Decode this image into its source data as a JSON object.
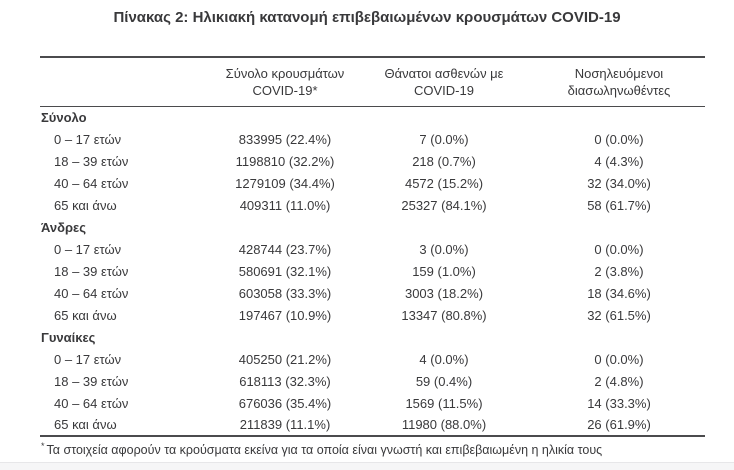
{
  "title": "Πίνακας 2: Ηλικιακή κατανομή επιβεβαιωμένων κρουσμάτων COVID-19",
  "colors": {
    "text": "#39393b",
    "rule": "#4b4b4d"
  },
  "table": {
    "columns": [
      {
        "line1": "",
        "line2": ""
      },
      {
        "line1": "Σύνολο κρουσμάτων",
        "line2": "COVID-19*"
      },
      {
        "line1": "Θάνατοι ασθενών με",
        "line2": "COVID-19"
      },
      {
        "line1": "Νοσηλευόμενοι",
        "line2": "διασωληνωθέντες"
      }
    ],
    "sections": [
      {
        "label": "Σύνολο",
        "rows": [
          {
            "age": "0 – 17 ετών",
            "cases": "833995 (22.4%)",
            "deaths": "7 (0.0%)",
            "intubated": "0 (0.0%)"
          },
          {
            "age": "18 – 39 ετών",
            "cases": "1198810 (32.2%)",
            "deaths": "218 (0.7%)",
            "intubated": "4 (4.3%)"
          },
          {
            "age": "40 – 64 ετών",
            "cases": "1279109 (34.4%)",
            "deaths": "4572 (15.2%)",
            "intubated": "32 (34.0%)"
          },
          {
            "age": "65 και άνω",
            "cases": "409311 (11.0%)",
            "deaths": "25327 (84.1%)",
            "intubated": "58 (61.7%)"
          }
        ]
      },
      {
        "label": "Άνδρες",
        "rows": [
          {
            "age": "0 – 17 ετών",
            "cases": "428744 (23.7%)",
            "deaths": "3 (0.0%)",
            "intubated": "0 (0.0%)"
          },
          {
            "age": "18 – 39 ετών",
            "cases": "580691 (32.1%)",
            "deaths": "159 (1.0%)",
            "intubated": "2 (3.8%)"
          },
          {
            "age": "40 – 64 ετών",
            "cases": "603058 (33.3%)",
            "deaths": "3003 (18.2%)",
            "intubated": "18 (34.6%)"
          },
          {
            "age": "65 και άνω",
            "cases": "197467 (10.9%)",
            "deaths": "13347 (80.8%)",
            "intubated": "32 (61.5%)"
          }
        ]
      },
      {
        "label": "Γυναίκες",
        "rows": [
          {
            "age": "0 – 17 ετών",
            "cases": "405250 (21.2%)",
            "deaths": "4 (0.0%)",
            "intubated": "0 (0.0%)"
          },
          {
            "age": "18 – 39 ετών",
            "cases": "618113 (32.3%)",
            "deaths": "59 (0.4%)",
            "intubated": "2 (4.8%)"
          },
          {
            "age": "40 – 64 ετών",
            "cases": "676036 (35.4%)",
            "deaths": "1569 (11.5%)",
            "intubated": "14 (33.3%)"
          },
          {
            "age": "65 και άνω",
            "cases": "211839 (11.1%)",
            "deaths": "11980 (88.0%)",
            "intubated": "26 (61.9%)"
          }
        ]
      }
    ]
  },
  "footnote": {
    "marker": "*",
    "text": "Τα στοιχεία αφορούν τα κρούσματα εκείνα για τα οποία είναι γνωστή και επιβεβαιωμένη η ηλικία τους"
  }
}
